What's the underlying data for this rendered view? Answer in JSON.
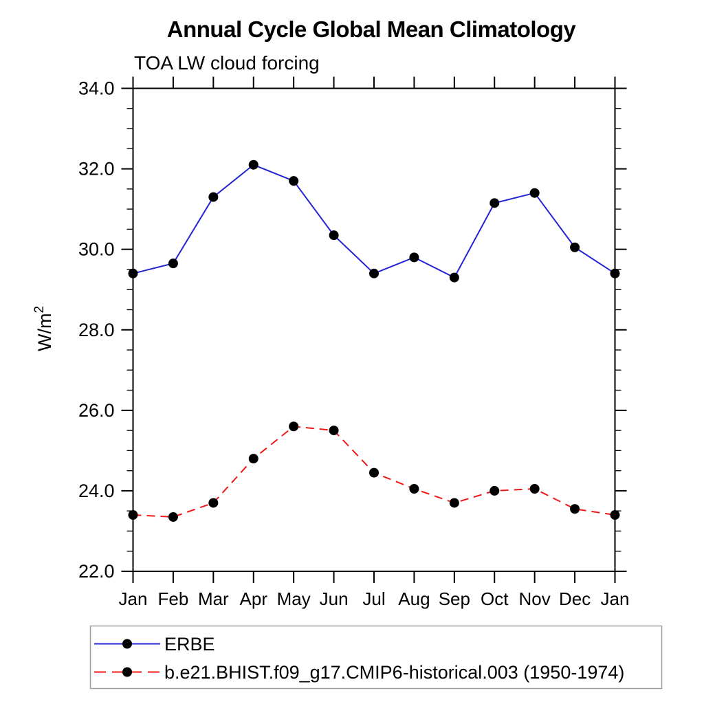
{
  "page": {
    "background_color": "#ffffff"
  },
  "chart_data": {
    "type": "line",
    "title": "Annual Cycle Global Mean Climatology",
    "subtitle": "TOA LW cloud forcing",
    "ylabel_base": "W/m",
    "ylabel_sup": "2",
    "categories": [
      "Jan",
      "Feb",
      "Mar",
      "Apr",
      "May",
      "Jun",
      "Jul",
      "Aug",
      "Sep",
      "Oct",
      "Nov",
      "Dec",
      "Jan"
    ],
    "ylim": [
      22.0,
      34.0
    ],
    "ytick_major_step": 2.0,
    "ytick_minor_step": 0.5,
    "ytick_labels": [
      "22.0",
      "24.0",
      "26.0",
      "28.0",
      "30.0",
      "32.0",
      "34.0"
    ],
    "grid": false,
    "legend_position": "bottom-left-box",
    "axis_color": "#000000",
    "marker_color": "#000000",
    "series": [
      {
        "name": "ERBE",
        "color": "#2323d3",
        "line_style": "solid",
        "marker": "circle",
        "values": [
          29.4,
          29.65,
          31.3,
          32.1,
          31.7,
          30.35,
          29.4,
          29.8,
          29.3,
          31.15,
          31.4,
          30.05,
          29.4
        ]
      },
      {
        "name": "b.e21.BHIST.f09_g17.CMIP6-historical.003 (1950-1974)",
        "color": "#f01717",
        "line_style": "dashed",
        "marker": "circle",
        "values": [
          23.4,
          23.35,
          23.7,
          24.8,
          25.6,
          25.5,
          24.45,
          24.05,
          23.7,
          24.0,
          24.05,
          23.55,
          23.4
        ]
      }
    ]
  }
}
